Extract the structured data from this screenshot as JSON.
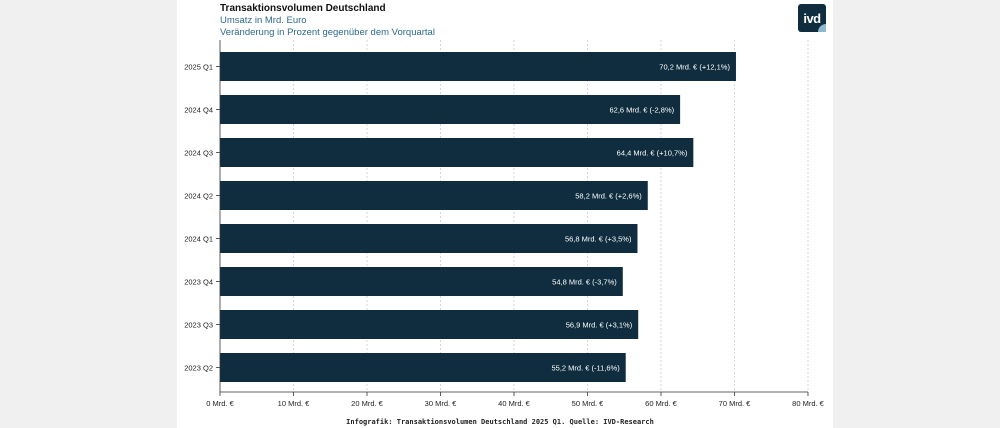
{
  "header": {
    "title": "Transaktionsvolumen Deutschland",
    "subtitle": "Umsatz in Mrd. Euro",
    "subtitle2": "Veränderung in Prozent gegenüber dem Vorquartal",
    "logo_text": "ivd"
  },
  "footer": {
    "source": "Infografik: Transaktionsvolumen Deutschland 2025 Q1. Quelle: IVD-Research"
  },
  "colors": {
    "bar": "#0f2d3e",
    "accent": "#2f6a8a",
    "grid": "#cccccc"
  },
  "chart_data": {
    "type": "bar",
    "orientation": "horizontal",
    "title": "Transaktionsvolumen Deutschland",
    "subtitle": "Umsatz in Mrd. Euro",
    "categories": [
      "2025 Q1",
      "2024 Q4",
      "2024 Q3",
      "2024 Q2",
      "2024 Q1",
      "2023 Q4",
      "2023 Q3",
      "2023 Q2"
    ],
    "values": [
      70.2,
      62.6,
      64.4,
      58.2,
      56.8,
      54.8,
      56.9,
      55.2
    ],
    "data_labels": [
      "70,2 Mrd. € (+12,1%)",
      "62,6 Mrd. € (-2,8%)",
      "64,4 Mrd. € (+10,7%)",
      "58,2 Mrd. € (+2,6%)",
      "56,8 Mrd. € (+3,5%)",
      "54,8 Mrd. € (-3,7%)",
      "56,9 Mrd. € (+3,1%)",
      "55,2 Mrd. € (-11,6%)"
    ],
    "xlim": [
      0,
      80
    ],
    "xticks": [
      0,
      10,
      20,
      30,
      40,
      50,
      60,
      70,
      80
    ],
    "xtick_labels": [
      "0 Mrd. €",
      "10 Mrd. €",
      "20 Mrd. €",
      "30 Mrd. €",
      "40 Mrd. €",
      "50 Mrd. €",
      "60 Mrd. €",
      "70 Mrd. €",
      "80 Mrd. €"
    ],
    "grid": true,
    "legend": "none"
  }
}
